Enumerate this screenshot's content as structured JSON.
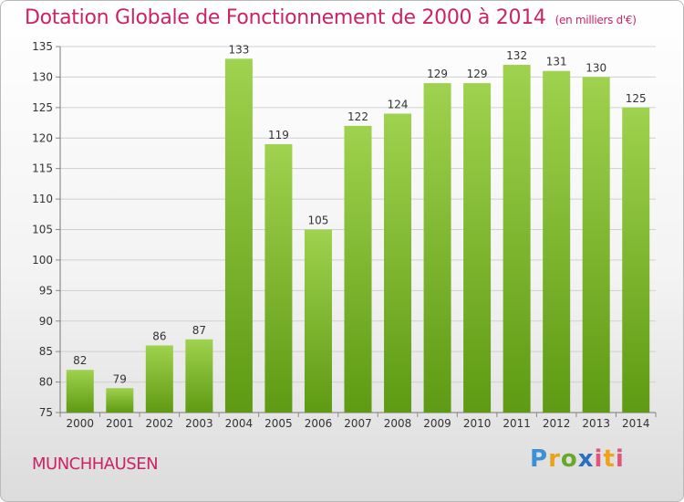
{
  "header": {
    "title": "Dotation Globale de Fonctionnement de 2000 à 2014",
    "unit": "(en milliers d'€)"
  },
  "footer": {
    "commune": "MUNCHHAUSEN",
    "logo_text": "Proxiti"
  },
  "colors": {
    "title": "#cc2266",
    "bar_light": "#9fd24e",
    "bar_dark": "#5e9a13",
    "grid": "#d0d0d0"
  },
  "chart_data": {
    "type": "bar",
    "title": "Dotation Globale de Fonctionnement de 2000 à 2014",
    "subtitle": "(en milliers d'€)",
    "xlabel": "",
    "ylabel": "",
    "categories": [
      "2000",
      "2001",
      "2002",
      "2003",
      "2004",
      "2005",
      "2006",
      "2007",
      "2008",
      "2009",
      "2010",
      "2011",
      "2012",
      "2013",
      "2014"
    ],
    "values": [
      82,
      79,
      86,
      87,
      133,
      119,
      105,
      122,
      124,
      129,
      129,
      132,
      131,
      130,
      125
    ],
    "ylim": [
      75,
      135
    ],
    "yticks": [
      75,
      80,
      85,
      90,
      95,
      100,
      105,
      110,
      115,
      120,
      125,
      130,
      135
    ],
    "grid": true,
    "data_labels": true
  }
}
